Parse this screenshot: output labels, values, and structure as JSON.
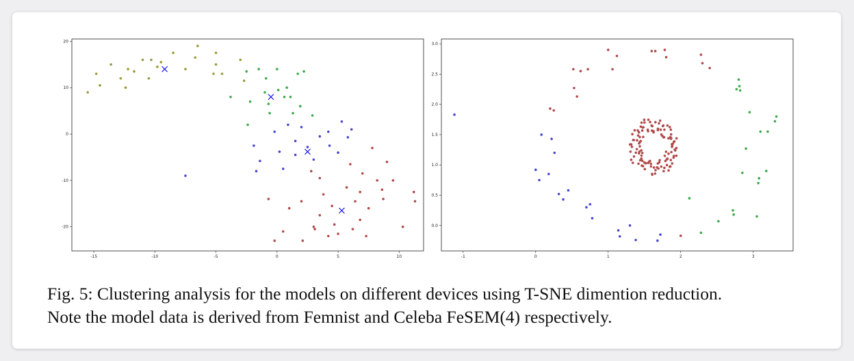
{
  "figure": {
    "caption_line1": "Fig. 5: Clustering analysis for the models on different devices using T-SNE dimention reduction.",
    "caption_line2": "Note the model data is derived from Femnist and Celeba FeSEM(4) respectively."
  },
  "colors": {
    "olive": "#9a9a3a",
    "green": "#3caa4a",
    "blue": "#4848d0",
    "red": "#b04a4a",
    "center": "#0000ee"
  },
  "chart_data": [
    {
      "type": "scatter",
      "title": "",
      "xlabel": "",
      "ylabel": "",
      "xlim": [
        -16.8,
        12.0
      ],
      "ylim": [
        -25.2,
        20.5
      ],
      "xticks": [
        -15,
        -10,
        -5,
        0,
        5,
        10
      ],
      "yticks": [
        -20,
        -10,
        0,
        10,
        20
      ],
      "grid": false,
      "series": [
        {
          "color": "olive",
          "points": [
            [
              -15.5,
              9
            ],
            [
              -14.8,
              13
            ],
            [
              -14.5,
              10.5
            ],
            [
              -13.6,
              15
            ],
            [
              -12.8,
              12
            ],
            [
              -12.4,
              10
            ],
            [
              -12.2,
              14
            ],
            [
              -11.7,
              13.5
            ],
            [
              -11.0,
              16
            ],
            [
              -10.5,
              12
            ],
            [
              -10.3,
              16
            ],
            [
              -9.8,
              14.5
            ],
            [
              -9.5,
              15.5
            ],
            [
              -8.5,
              17.5
            ],
            [
              -7.5,
              14
            ],
            [
              -6.5,
              19
            ],
            [
              -6.7,
              16.5
            ],
            [
              -5.0,
              15
            ],
            [
              -5.0,
              17.5
            ],
            [
              -5.2,
              13
            ],
            [
              -4.5,
              13
            ],
            [
              -3.0,
              16
            ],
            [
              -2.7,
              11.5
            ]
          ]
        },
        {
          "color": "green",
          "points": [
            [
              -3.8,
              8
            ],
            [
              -2.5,
              13.5
            ],
            [
              -2.2,
              7
            ],
            [
              -1.5,
              14
            ],
            [
              -0.9,
              12
            ],
            [
              -1.0,
              9
            ],
            [
              -0.7,
              6.5
            ],
            [
              -0.6,
              4.5
            ],
            [
              0.0,
              14
            ],
            [
              0.1,
              9.5
            ],
            [
              0.6,
              8
            ],
            [
              0.8,
              10
            ],
            [
              1.1,
              8
            ],
            [
              1.3,
              4.5
            ],
            [
              1.7,
              13
            ],
            [
              1.9,
              6
            ],
            [
              2.2,
              13.5
            ],
            [
              2.9,
              4
            ],
            [
              -2.4,
              2
            ]
          ]
        },
        {
          "color": "blue",
          "points": [
            [
              -7.5,
              -9
            ],
            [
              -1.9,
              -2.5
            ],
            [
              -1.7,
              -8
            ],
            [
              -1.4,
              -5.8
            ],
            [
              -0.2,
              0.5
            ],
            [
              0.2,
              -3.8
            ],
            [
              0.5,
              -7.5
            ],
            [
              0.9,
              2
            ],
            [
              1.5,
              -4.5
            ],
            [
              1.5,
              -1.5
            ],
            [
              2.0,
              1.5
            ],
            [
              2.5,
              -2.8
            ],
            [
              3.0,
              -5.5
            ],
            [
              3.5,
              -0.5
            ],
            [
              4.2,
              0.5
            ],
            [
              4.3,
              -2.5
            ],
            [
              5.0,
              -4
            ],
            [
              5.3,
              2.7
            ],
            [
              5.8,
              -0.7
            ],
            [
              6.1,
              1
            ]
          ]
        },
        {
          "color": "red",
          "points": [
            [
              -0.7,
              -14
            ],
            [
              -0.2,
              -23
            ],
            [
              0.5,
              -21
            ],
            [
              1.0,
              -16
            ],
            [
              2.0,
              -14.5
            ],
            [
              2.1,
              -23
            ],
            [
              3.0,
              -20
            ],
            [
              3.5,
              -9.5
            ],
            [
              3.5,
              -17.5
            ],
            [
              3.8,
              -13
            ],
            [
              4.2,
              -22
            ],
            [
              4.5,
              -15.5
            ],
            [
              4.7,
              -19.5
            ],
            [
              5.0,
              -21.5
            ],
            [
              5.7,
              -11.5
            ],
            [
              6.0,
              -6.5
            ],
            [
              6.2,
              -20.5
            ],
            [
              6.4,
              -14.5
            ],
            [
              6.8,
              -12.5
            ],
            [
              6.8,
              -18.5
            ],
            [
              7.0,
              -8.5
            ],
            [
              7.3,
              -22
            ],
            [
              7.5,
              -16
            ],
            [
              7.8,
              -3
            ],
            [
              8.2,
              -10
            ],
            [
              8.6,
              -12
            ],
            [
              8.7,
              -14
            ],
            [
              9.0,
              -6
            ],
            [
              9.5,
              -10
            ],
            [
              10.3,
              -20
            ],
            [
              11.2,
              -12.5
            ],
            [
              11.3,
              -14.5
            ],
            [
              3.1,
              -20.5
            ],
            [
              2.8,
              -8
            ]
          ]
        }
      ],
      "centers": [
        [
          -9.2,
          14
        ],
        [
          -0.5,
          8
        ],
        [
          2.5,
          -3.8
        ],
        [
          5.3,
          -16.5
        ]
      ]
    },
    {
      "type": "scatter",
      "title": "",
      "xlabel": "",
      "ylabel": "",
      "xlim": [
        -1.3,
        3.55
      ],
      "ylim": [
        -0.42,
        3.08
      ],
      "xticks": [
        -1,
        0,
        1,
        2,
        3
      ],
      "yticks": [
        0.0,
        0.5,
        1.0,
        1.5,
        2.0,
        2.5,
        3.0
      ],
      "grid": false,
      "series": [
        {
          "color": "red",
          "ring": {
            "cx": 1.63,
            "cy": 1.3,
            "r": 0.26,
            "ry_ratio": 1.38,
            "n": 120,
            "jitter": 0.09
          },
          "points": [
            [
              0.2,
              1.93
            ],
            [
              0.25,
              1.9
            ],
            [
              0.52,
              2.58
            ],
            [
              0.53,
              2.27
            ],
            [
              0.57,
              2.13
            ],
            [
              0.62,
              2.55
            ],
            [
              0.72,
              2.58
            ],
            [
              1.0,
              2.9
            ],
            [
              1.06,
              2.58
            ],
            [
              1.12,
              2.8
            ],
            [
              1.6,
              2.88
            ],
            [
              1.65,
              2.88
            ],
            [
              1.78,
              2.9
            ],
            [
              1.8,
              2.78
            ],
            [
              2.28,
              2.82
            ],
            [
              2.3,
              2.68
            ],
            [
              2.4,
              2.6
            ],
            [
              2.0,
              -0.17
            ]
          ]
        },
        {
          "color": "blue",
          "points": [
            [
              -1.12,
              1.83
            ],
            [
              0.0,
              0.92
            ],
            [
              0.05,
              0.75
            ],
            [
              0.08,
              1.5
            ],
            [
              0.18,
              0.85
            ],
            [
              0.22,
              1.43
            ],
            [
              0.26,
              1.2
            ],
            [
              0.32,
              0.52
            ],
            [
              0.38,
              0.43
            ],
            [
              0.45,
              0.58
            ],
            [
              0.7,
              0.3
            ],
            [
              0.75,
              0.35
            ],
            [
              0.78,
              0.12
            ],
            [
              1.14,
              -0.08
            ],
            [
              1.16,
              -0.18
            ],
            [
              1.3,
              0.0
            ],
            [
              1.38,
              -0.24
            ],
            [
              1.68,
              -0.25
            ],
            [
              1.72,
              -0.15
            ]
          ]
        },
        {
          "color": "green",
          "points": [
            [
              2.12,
              0.45
            ],
            [
              2.28,
              -0.12
            ],
            [
              2.52,
              0.07
            ],
            [
              2.72,
              0.25
            ],
            [
              2.73,
              0.18
            ],
            [
              2.77,
              2.25
            ],
            [
              2.8,
              2.41
            ],
            [
              2.81,
              2.3
            ],
            [
              2.82,
              2.23
            ],
            [
              2.85,
              0.87
            ],
            [
              2.9,
              1.27
            ],
            [
              2.95,
              1.87
            ],
            [
              3.05,
              0.15
            ],
            [
              3.07,
              0.7
            ],
            [
              3.08,
              0.78
            ],
            [
              3.1,
              1.55
            ],
            [
              3.18,
              0.9
            ],
            [
              3.2,
              1.55
            ],
            [
              3.3,
              1.72
            ],
            [
              3.32,
              1.8
            ]
          ]
        }
      ]
    }
  ]
}
